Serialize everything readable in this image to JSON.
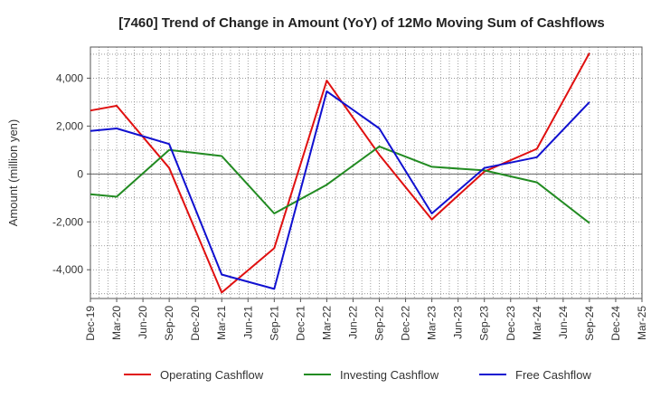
{
  "chart_data": {
    "type": "line",
    "title": "[7460]  Trend of Change in Amount (YoY) of 12Mo Moving Sum of Cashflows",
    "xlabel": "",
    "ylabel": "Amount (million yen)",
    "ylim": [
      -5200,
      5300
    ],
    "yticks": [
      -4000,
      -2000,
      0,
      2000,
      4000
    ],
    "ytick_labels": [
      "-4,000",
      "-2,000",
      "0",
      "2,000",
      "4,000"
    ],
    "categories": [
      "Dec-19",
      "Mar-20",
      "Jun-20",
      "Sep-20",
      "Dec-20",
      "Mar-21",
      "Jun-21",
      "Sep-21",
      "Dec-21",
      "Mar-22",
      "Jun-22",
      "Sep-22",
      "Dec-22",
      "Mar-23",
      "Jun-23",
      "Sep-23",
      "Dec-23",
      "Mar-24",
      "Jun-24",
      "Sep-24",
      "Dec-24",
      "Mar-25"
    ],
    "grid": true,
    "legend_position": "bottom",
    "series": [
      {
        "name": "Operating Cashflow",
        "color": "#e01010",
        "points": [
          {
            "x": "Dec-19",
            "y": 2650
          },
          {
            "x": "Mar-20",
            "y": 2850
          },
          {
            "x": "Sep-20",
            "y": 250
          },
          {
            "x": "Mar-21",
            "y": -4950
          },
          {
            "x": "Sep-21",
            "y": -3100
          },
          {
            "x": "Mar-22",
            "y": 3900
          },
          {
            "x": "Sep-22",
            "y": 800
          },
          {
            "x": "Mar-23",
            "y": -1900
          },
          {
            "x": "Sep-23",
            "y": 100
          },
          {
            "x": "Mar-24",
            "y": 1050
          },
          {
            "x": "Sep-24",
            "y": 5050
          }
        ]
      },
      {
        "name": "Investing Cashflow",
        "color": "#228b22",
        "points": [
          {
            "x": "Dec-19",
            "y": -850
          },
          {
            "x": "Mar-20",
            "y": -950
          },
          {
            "x": "Sep-20",
            "y": 1000
          },
          {
            "x": "Mar-21",
            "y": 750
          },
          {
            "x": "Sep-21",
            "y": -1650
          },
          {
            "x": "Mar-22",
            "y": -450
          },
          {
            "x": "Sep-22",
            "y": 1150
          },
          {
            "x": "Mar-23",
            "y": 300
          },
          {
            "x": "Sep-23",
            "y": 150
          },
          {
            "x": "Mar-24",
            "y": -350
          },
          {
            "x": "Sep-24",
            "y": -2050
          }
        ]
      },
      {
        "name": "Free Cashflow",
        "color": "#1010d0",
        "points": [
          {
            "x": "Dec-19",
            "y": 1800
          },
          {
            "x": "Mar-20",
            "y": 1900
          },
          {
            "x": "Sep-20",
            "y": 1250
          },
          {
            "x": "Mar-21",
            "y": -4200
          },
          {
            "x": "Sep-21",
            "y": -4800
          },
          {
            "x": "Mar-22",
            "y": 3450
          },
          {
            "x": "Sep-22",
            "y": 1900
          },
          {
            "x": "Mar-23",
            "y": -1650
          },
          {
            "x": "Sep-23",
            "y": 250
          },
          {
            "x": "Mar-24",
            "y": 700
          },
          {
            "x": "Sep-24",
            "y": 3000
          }
        ]
      }
    ]
  }
}
